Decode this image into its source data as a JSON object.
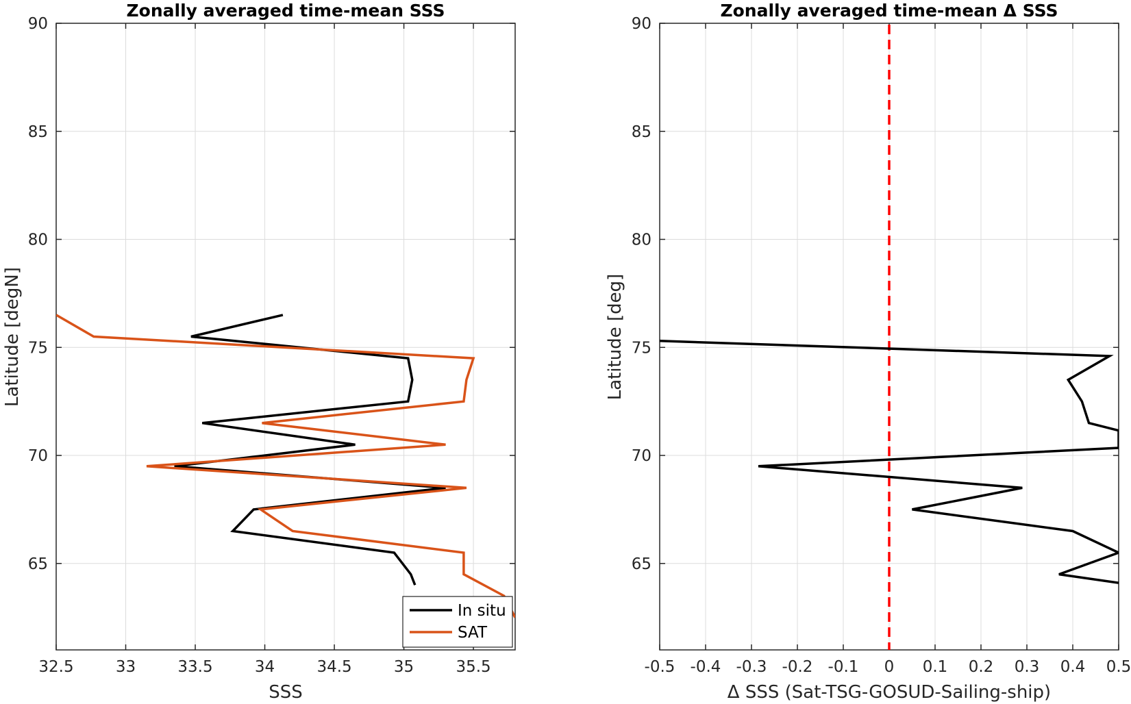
{
  "chart_data": [
    {
      "type": "line",
      "title": "Zonally averaged time-mean SSS",
      "xlabel": "SSS",
      "ylabel": "Latitude [degN]",
      "xlim": [
        32.5,
        35.8
      ],
      "ylim": [
        61,
        90
      ],
      "xticks": [
        "32.5",
        "33",
        "33.5",
        "34",
        "34.5",
        "35",
        "35.5"
      ],
      "yticks": [
        "65",
        "70",
        "75",
        "80",
        "85",
        "90"
      ],
      "grid": true,
      "legend": "bottom-right",
      "series": [
        {
          "name": "In situ",
          "color": "#000000",
          "points": [
            [
              34.13,
              76.5
            ],
            [
              33.47,
              75.5
            ],
            [
              35.03,
              74.5
            ],
            [
              35.06,
              73.5
            ],
            [
              35.03,
              72.5
            ],
            [
              33.55,
              71.5
            ],
            [
              34.65,
              70.5
            ],
            [
              33.35,
              69.5
            ],
            [
              35.3,
              68.5
            ],
            [
              33.92,
              67.5
            ],
            [
              33.77,
              66.5
            ],
            [
              34.93,
              65.5
            ],
            [
              35.05,
              64.5
            ],
            [
              35.08,
              64.0
            ]
          ]
        },
        {
          "name": "SAT",
          "color": "#D95319",
          "points": [
            [
              32.5,
              76.5
            ],
            [
              32.77,
              75.5
            ],
            [
              35.5,
              74.5
            ],
            [
              35.45,
              73.5
            ],
            [
              35.43,
              72.5
            ],
            [
              33.98,
              71.5
            ],
            [
              35.3,
              70.5
            ],
            [
              33.15,
              69.5
            ],
            [
              35.45,
              68.5
            ],
            [
              33.97,
              67.5
            ],
            [
              34.2,
              66.5
            ],
            [
              35.43,
              65.5
            ],
            [
              35.43,
              64.5
            ],
            [
              35.72,
              63.5
            ],
            [
              35.8,
              62.5
            ]
          ]
        }
      ]
    },
    {
      "type": "line",
      "title": "Zonally averaged time-mean Δ SSS",
      "xlabel": "Δ SSS (Sat-TSG-GOSUD-Sailing-ship)",
      "ylabel": "Latitude [deg]",
      "xlim": [
        -0.5,
        0.5
      ],
      "ylim": [
        61,
        90
      ],
      "xticks": [
        "-0.5",
        "-0.4",
        "-0.3",
        "-0.2",
        "-0.1",
        "0",
        "0.1",
        "0.2",
        "0.3",
        "0.4",
        "0.5"
      ],
      "yticks": [
        "65",
        "70",
        "75",
        "80",
        "85",
        "90"
      ],
      "grid": true,
      "reference_line": {
        "x": 0,
        "color": "#FF0000",
        "style": "dashed"
      },
      "series": [
        {
          "color": "#000000",
          "points": [
            [
              -0.5,
              75.3
            ],
            [
              0.48,
              74.6
            ],
            [
              0.39,
              73.5
            ],
            [
              0.42,
              72.5
            ],
            [
              0.435,
              71.5
            ],
            [
              0.5,
              71.15
            ],
            [
              0.5,
              70.35
            ],
            [
              -0.285,
              69.5
            ],
            [
              0.29,
              68.5
            ],
            [
              0.05,
              67.5
            ],
            [
              0.4,
              66.5
            ],
            [
              0.5,
              65.5
            ],
            [
              0.37,
              64.5
            ],
            [
              0.5,
              64.1
            ]
          ]
        }
      ]
    }
  ]
}
